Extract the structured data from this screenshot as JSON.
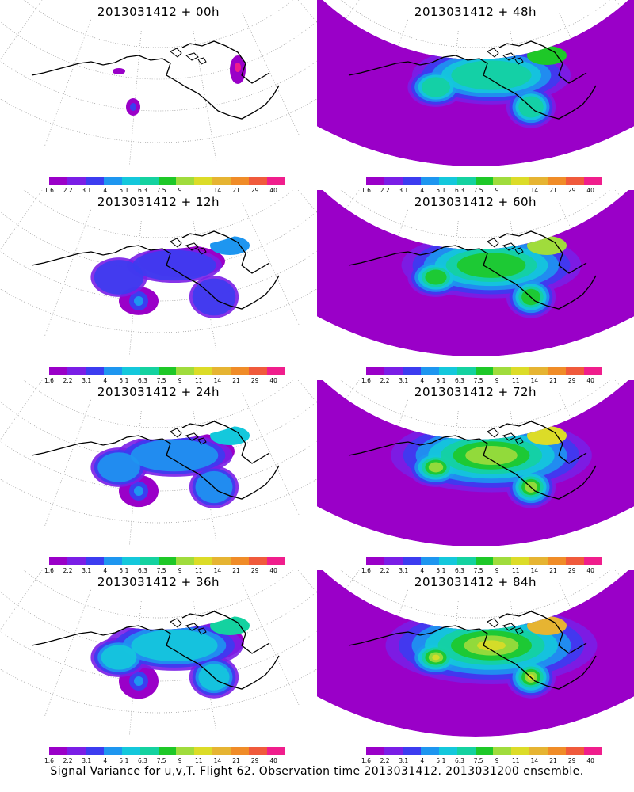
{
  "panels": [
    {
      "title": "2013031412 + 00h",
      "level": 0
    },
    {
      "title": "2013031412 + 48h",
      "level": 4
    },
    {
      "title": "2013031412 + 12h",
      "level": 1
    },
    {
      "title": "2013031412 + 60h",
      "level": 5
    },
    {
      "title": "2013031412 + 24h",
      "level": 2
    },
    {
      "title": "2013031412 + 72h",
      "level": 6
    },
    {
      "title": "2013031412 + 36h",
      "level": 3
    },
    {
      "title": "2013031412 + 84h",
      "level": 7
    }
  ],
  "colorbar": {
    "labels": [
      "1.6",
      "2.2",
      "3.1",
      "4",
      "5.1",
      "6.3",
      "7.5",
      "9",
      "11",
      "14",
      "21",
      "29",
      "40"
    ],
    "colors": [
      "#9a00c8",
      "#7a1ee6",
      "#3c3cf0",
      "#1e96f0",
      "#14c8dc",
      "#14d2a0",
      "#1ec828",
      "#a0dc3c",
      "#dcdc28",
      "#e6b432",
      "#f08c28",
      "#f05a3c",
      "#f01e8c"
    ]
  },
  "footer": "Signal Variance for u,v,T. Flight 62. Observation time 2013031412. 2013031200 ensemble."
}
